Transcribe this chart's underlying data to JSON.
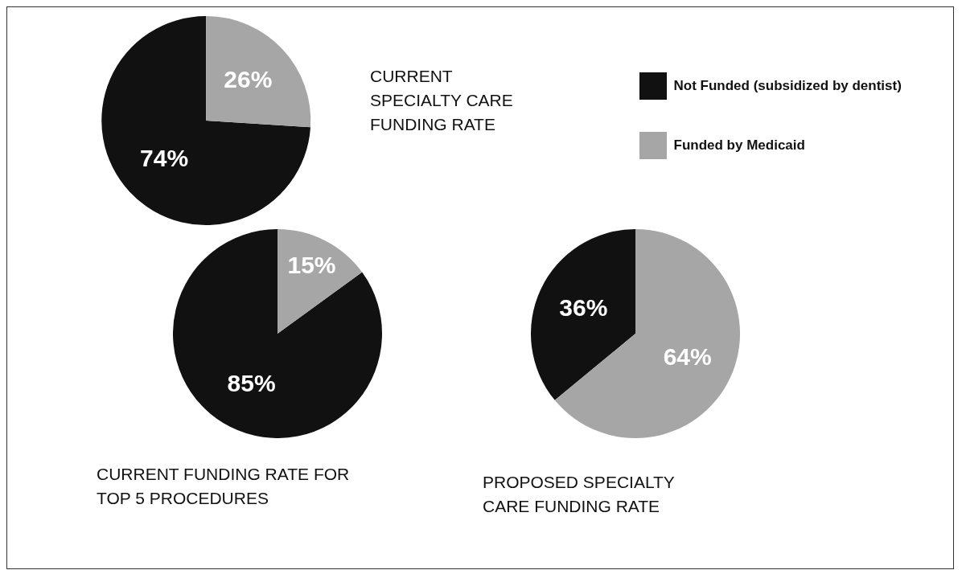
{
  "chart_data": [
    {
      "type": "pie",
      "title": "CURRENT SPECIALTY CARE FUNDING RATE",
      "categories": [
        "Not Funded (subsidized by dentist)",
        "Funded by Medicaid"
      ],
      "values": [
        74,
        26
      ],
      "value_labels": [
        "74%",
        "26%"
      ],
      "colors": [
        "#111111",
        "#a6a6a6"
      ],
      "legend": "right"
    },
    {
      "type": "pie",
      "title": "CURRENT FUNDING RATE FOR TOP 5 PROCEDURES",
      "categories": [
        null,
        null
      ],
      "values": [
        85,
        15
      ],
      "value_labels": [
        "85%",
        "15%"
      ],
      "colors": [
        "#111111",
        "#a6a6a6"
      ]
    },
    {
      "type": "pie",
      "title": "PROPOSED SPECIALTY CARE FUNDING RATE",
      "categories": [
        null,
        null
      ],
      "values": [
        36,
        64
      ],
      "value_labels": [
        "36%",
        "64%"
      ],
      "colors": [
        "#111111",
        "#a6a6a6"
      ]
    }
  ]
}
